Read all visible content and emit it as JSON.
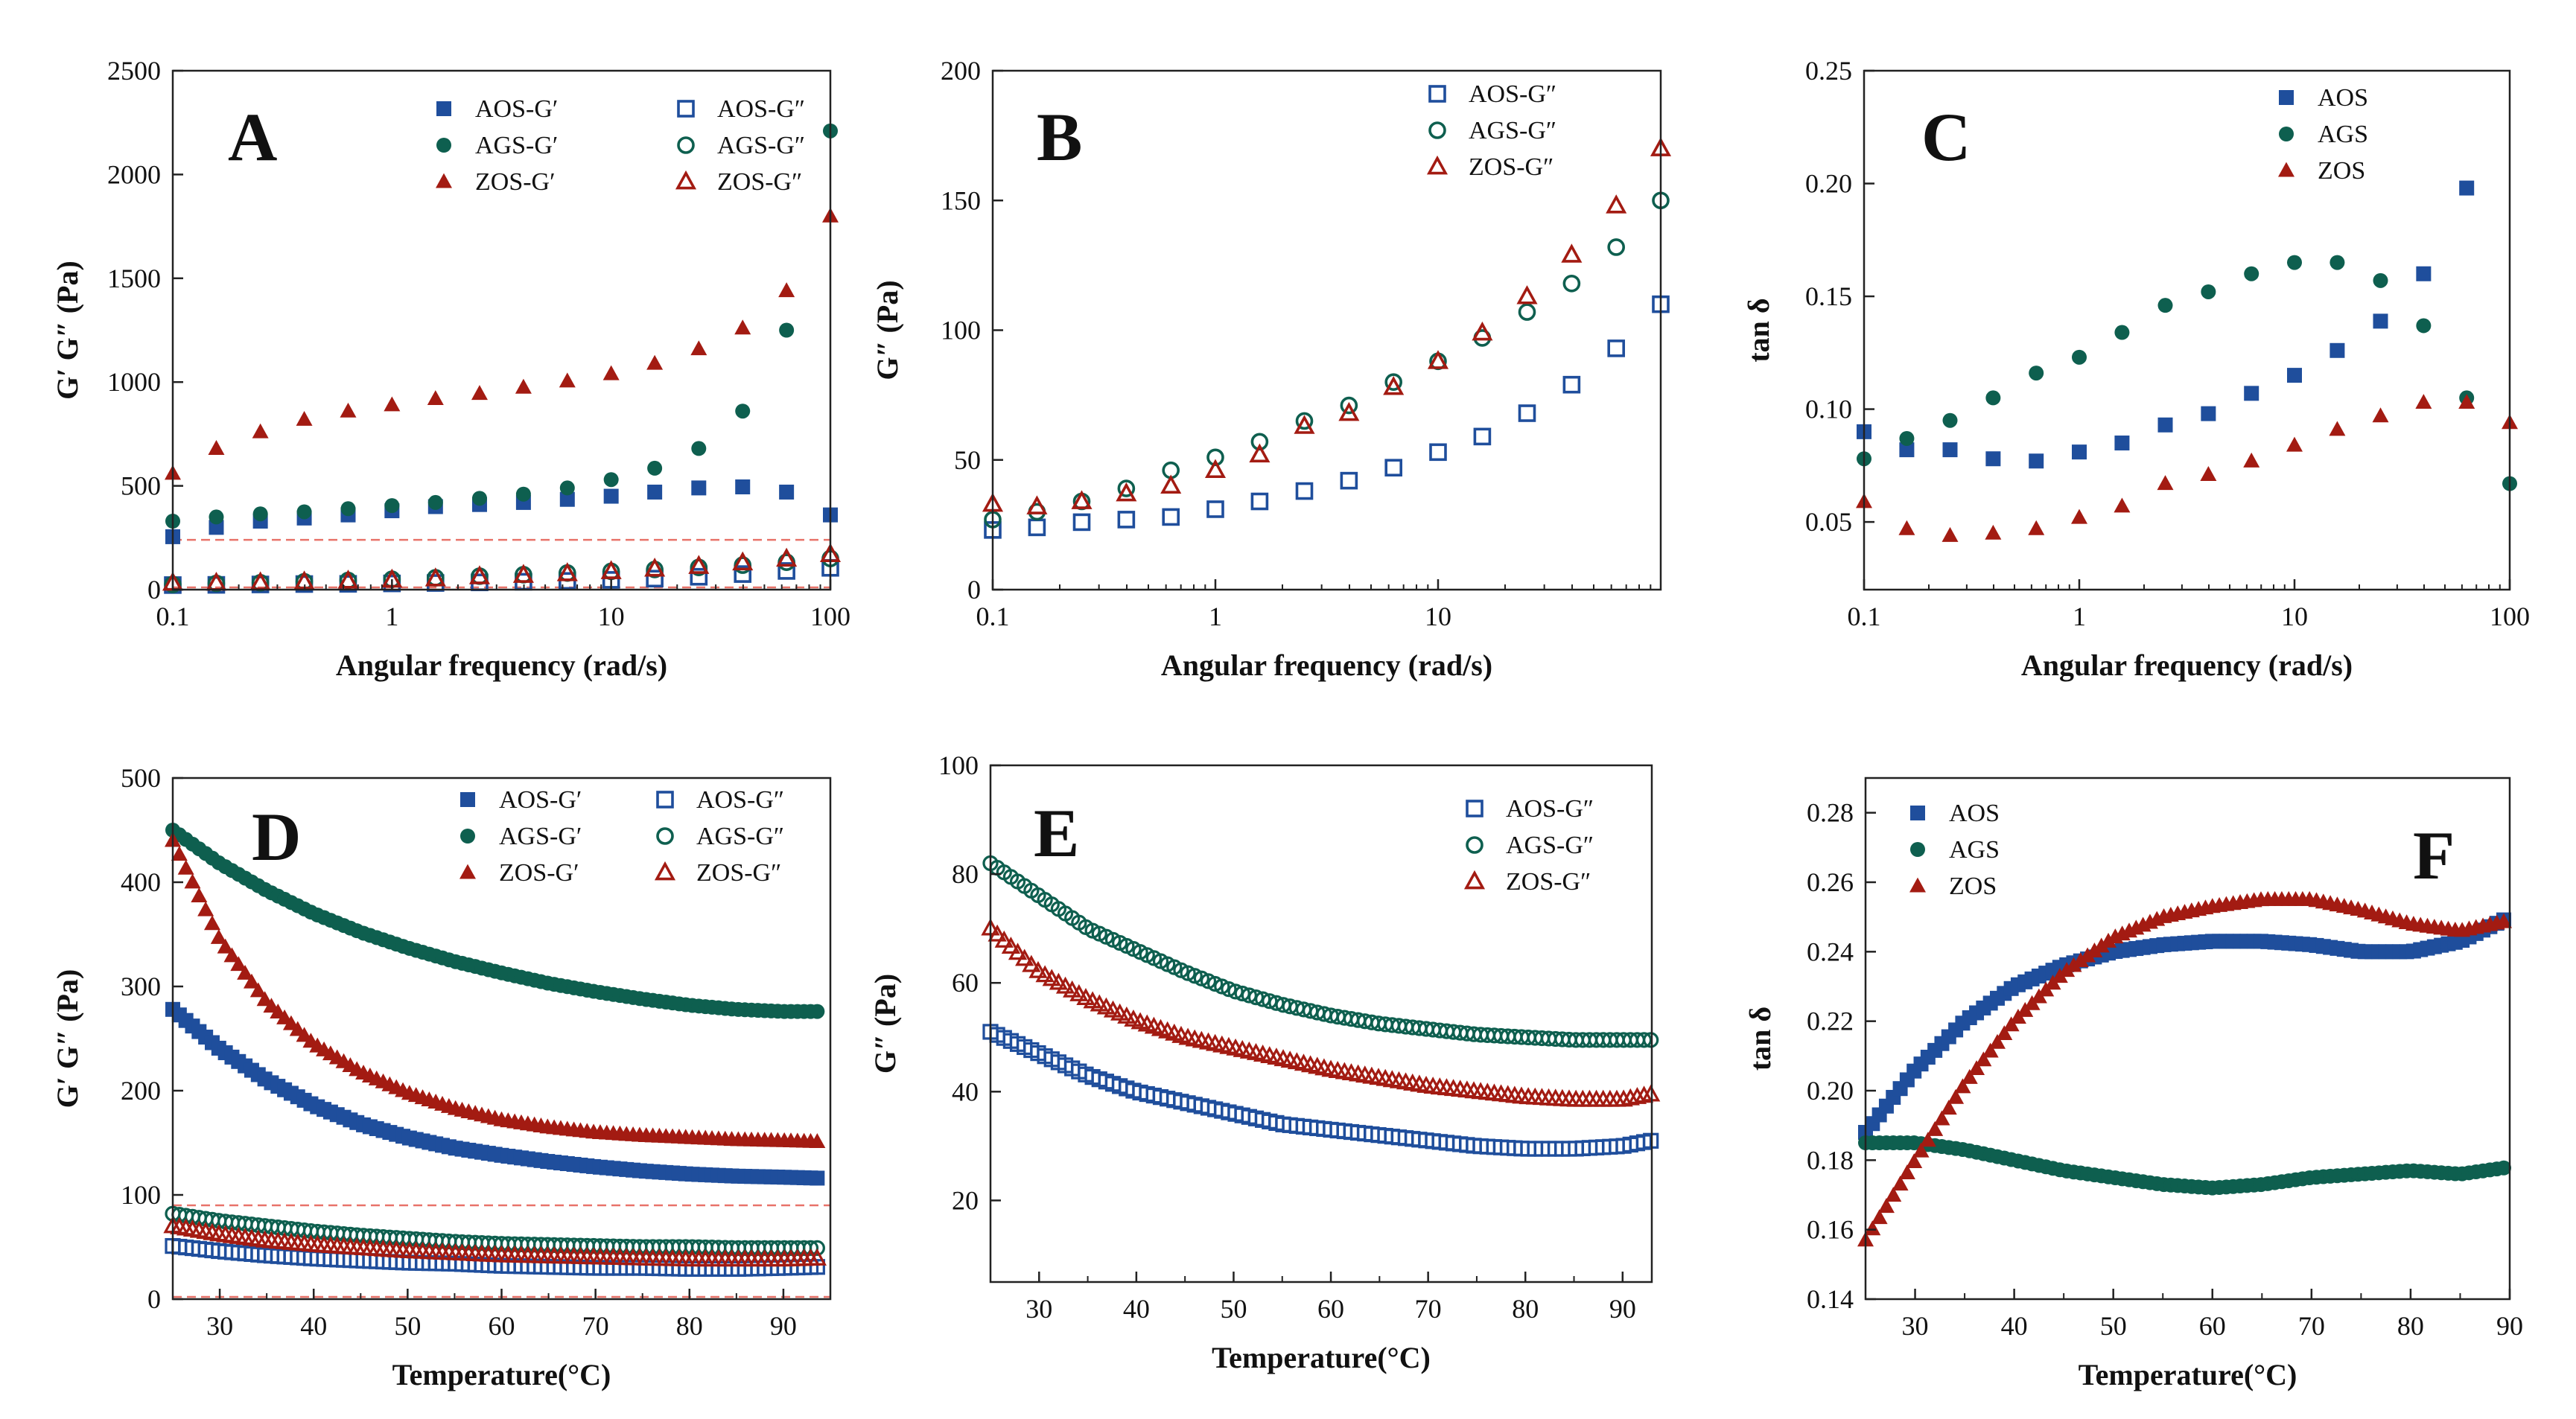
{
  "colors": {
    "AOS": "#1f4e9c",
    "AGS": "#0e5f4f",
    "ZOS": "#a31b12",
    "ref": "#e8736a"
  },
  "chart_data": [
    {
      "id": "A",
      "type": "scatter",
      "xscale": "log",
      "xlabel": "Angular frequency (rad/s)",
      "ylabel": "G′ G″ (Pa)",
      "xlim": [
        0.1,
        100
      ],
      "ylim": [
        0,
        2500
      ],
      "xticks": [
        0.1,
        1,
        10,
        100
      ],
      "xticklabels": [
        "0.1",
        "1",
        "10",
        "100"
      ],
      "yticks": [
        0,
        500,
        1000,
        1500,
        2000,
        2500
      ],
      "yticklabels": [
        "0",
        "500",
        "1000",
        "1500",
        "2000",
        "2500"
      ],
      "hline": 240,
      "legend_cols": 2,
      "x": [
        0.1,
        0.158,
        0.251,
        0.398,
        0.631,
        1,
        1.58,
        2.51,
        3.98,
        6.31,
        10,
        15.8,
        25.1,
        39.8,
        63.1,
        100
      ],
      "series": [
        {
          "name": "AOS-G′",
          "group": "AOS",
          "marker": "square",
          "filled": true,
          "values": [
            255,
            300,
            330,
            345,
            360,
            380,
            400,
            410,
            420,
            435,
            450,
            470,
            490,
            495,
            470,
            360
          ]
        },
        {
          "name": "AOS-G″",
          "group": "AOS",
          "marker": "square",
          "filled": false,
          "values": [
            22,
            23,
            25,
            27,
            28,
            30,
            32,
            35,
            38,
            42,
            47,
            53,
            62,
            75,
            90,
            105
          ]
        },
        {
          "name": "AGS-G′",
          "group": "AGS",
          "marker": "circle",
          "filled": true,
          "values": [
            330,
            350,
            365,
            375,
            390,
            405,
            420,
            440,
            460,
            490,
            530,
            585,
            680,
            860,
            1250,
            2210
          ]
        },
        {
          "name": "AGS-G″",
          "group": "AGS",
          "marker": "circle",
          "filled": false,
          "values": [
            25,
            30,
            33,
            38,
            44,
            50,
            57,
            65,
            72,
            80,
            88,
            97,
            107,
            118,
            132,
            150
          ]
        },
        {
          "name": "ZOS-G′",
          "group": "ZOS",
          "marker": "triangle",
          "filled": true,
          "values": [
            560,
            680,
            760,
            820,
            860,
            890,
            920,
            945,
            975,
            1005,
            1040,
            1090,
            1160,
            1260,
            1440,
            1800
          ]
        },
        {
          "name": "ZOS-G″",
          "group": "ZOS",
          "marker": "triangle",
          "filled": false,
          "values": [
            32,
            32,
            34,
            38,
            42,
            47,
            53,
            63,
            70,
            78,
            88,
            100,
            113,
            130,
            148,
            170
          ]
        }
      ]
    },
    {
      "id": "B",
      "type": "scatter",
      "xscale": "log",
      "xlabel": "Angular frequency (rad/s)",
      "ylabel": "G″ (Pa)",
      "xlim": [
        0.1,
        100
      ],
      "ylim": [
        0,
        200
      ],
      "xticks": [
        0.1,
        1,
        10
      ],
      "xticklabels": [
        "0.1",
        "1",
        "10"
      ],
      "yticks": [
        0,
        50,
        100,
        150,
        200
      ],
      "yticklabels": [
        "0",
        "50",
        "100",
        "150",
        "200"
      ],
      "legend_cols": 1,
      "x": [
        0.1,
        0.158,
        0.251,
        0.398,
        0.631,
        1,
        1.58,
        2.51,
        3.98,
        6.31,
        10,
        15.8,
        25.1,
        39.8,
        63.1,
        100
      ],
      "series": [
        {
          "name": "AOS-G″",
          "group": "AOS",
          "marker": "square",
          "filled": false,
          "values": [
            23,
            24,
            26,
            27,
            28,
            31,
            34,
            38,
            42,
            47,
            53,
            59,
            68,
            79,
            93,
            110
          ]
        },
        {
          "name": "AGS-G″",
          "group": "AGS",
          "marker": "circle",
          "filled": false,
          "values": [
            27,
            30,
            34,
            39,
            46,
            51,
            57,
            65,
            71,
            80,
            88,
            97,
            107,
            118,
            132,
            150
          ]
        },
        {
          "name": "ZOS-G″",
          "group": "ZOS",
          "marker": "triangle",
          "filled": false,
          "values": [
            33,
            32,
            34,
            37,
            40,
            46,
            52,
            63,
            68,
            78,
            88,
            99,
            113,
            129,
            148,
            170
          ]
        }
      ]
    },
    {
      "id": "C",
      "type": "scatter",
      "xscale": "log",
      "xlabel": "Angular frequency (rad/s)",
      "ylabel": "tan δ",
      "xlim": [
        0.1,
        100
      ],
      "ylim": [
        0.02,
        0.25
      ],
      "xticks": [
        0.1,
        1,
        10,
        100
      ],
      "xticklabels": [
        "0.1",
        "1",
        "10",
        "100"
      ],
      "yticks": [
        0.05,
        0.1,
        0.15,
        0.2,
        0.25
      ],
      "yticklabels": [
        "0.05",
        "0.10",
        "0.15",
        "0.20",
        "0.25"
      ],
      "legend_cols": 1,
      "x": [
        0.1,
        0.158,
        0.251,
        0.398,
        0.631,
        1,
        1.58,
        2.51,
        3.98,
        6.31,
        10,
        15.8,
        25.1,
        39.8,
        63.1,
        100
      ],
      "series": [
        {
          "name": "AOS",
          "group": "AOS",
          "marker": "square",
          "filled": true,
          "values": [
            0.09,
            0.082,
            0.082,
            0.078,
            0.077,
            0.081,
            0.085,
            0.093,
            0.098,
            0.107,
            0.115,
            0.126,
            0.139,
            0.16,
            0.198,
            null
          ]
        },
        {
          "name": "AGS",
          "group": "AGS",
          "marker": "circle",
          "filled": true,
          "values": [
            0.078,
            0.087,
            0.095,
            0.105,
            0.116,
            0.123,
            0.134,
            0.146,
            0.152,
            0.16,
            0.165,
            0.165,
            0.157,
            0.137,
            0.105,
            0.067
          ]
        },
        {
          "name": "ZOS",
          "group": "ZOS",
          "marker": "triangle",
          "filled": true,
          "values": [
            0.059,
            0.047,
            0.044,
            0.045,
            0.047,
            0.052,
            0.057,
            0.067,
            0.071,
            0.077,
            0.084,
            0.091,
            0.097,
            0.103,
            0.103,
            0.094
          ]
        }
      ]
    },
    {
      "id": "D",
      "type": "scatter",
      "xscale": "linear",
      "xlabel": "Temperature(°C)",
      "ylabel": "G′ G″ (Pa)",
      "xlim": [
        25,
        95
      ],
      "ylim": [
        0,
        500
      ],
      "xticks": [
        30,
        40,
        50,
        60,
        70,
        80,
        90
      ],
      "xticklabels": [
        "30",
        "40",
        "50",
        "60",
        "70",
        "80",
        "90"
      ],
      "yticks": [
        0,
        100,
        200,
        300,
        400,
        500
      ],
      "yticklabels": [
        "0",
        "100",
        "200",
        "300",
        "400",
        "500"
      ],
      "hline": 90,
      "legend_cols": 2,
      "dense": true,
      "x": [
        25,
        30,
        35,
        40,
        45,
        50,
        55,
        60,
        65,
        70,
        75,
        80,
        85,
        90,
        94
      ],
      "series": [
        {
          "name": "AOS-G′",
          "group": "AOS",
          "marker": "square",
          "filled": true,
          "values": [
            278,
            240,
            210,
            186,
            168,
            155,
            145,
            138,
            132,
            127,
            123,
            120,
            118,
            117,
            116
          ]
        },
        {
          "name": "AOS-G″",
          "group": "AOS",
          "marker": "square",
          "filled": false,
          "values": [
            51,
            46,
            42,
            39,
            37,
            35,
            34,
            32,
            31,
            30,
            30,
            29,
            29,
            30,
            31
          ]
        },
        {
          "name": "AGS-G′",
          "group": "AGS",
          "marker": "circle",
          "filled": true,
          "values": [
            450,
            418,
            392,
            370,
            352,
            337,
            324,
            313,
            303,
            295,
            288,
            282,
            278,
            276,
            276
          ]
        },
        {
          "name": "AGS-G″",
          "group": "AGS",
          "marker": "circle",
          "filled": false,
          "values": [
            82,
            75,
            70,
            65,
            61,
            58,
            55,
            53,
            52,
            51,
            50,
            50,
            49,
            49,
            49
          ]
        },
        {
          "name": "ZOS-G′",
          "group": "ZOS",
          "marker": "triangle",
          "filled": true,
          "values": [
            440,
            345,
            285,
            245,
            218,
            198,
            183,
            172,
            165,
            160,
            157,
            155,
            153,
            152,
            151
          ]
        },
        {
          "name": "ZOS-G″",
          "group": "ZOS",
          "marker": "triangle",
          "filled": false,
          "values": [
            70,
            62,
            56,
            52,
            49,
            46,
            44,
            42,
            41,
            40,
            39,
            38,
            38,
            38,
            39
          ]
        }
      ]
    },
    {
      "id": "E",
      "type": "scatter",
      "xscale": "linear",
      "xlabel": "Temperature(°C)",
      "ylabel": "G″ (Pa)",
      "xlim": [
        25,
        93
      ],
      "ylim": [
        5,
        100
      ],
      "xticks": [
        30,
        40,
        50,
        60,
        70,
        80,
        90
      ],
      "xticklabels": [
        "30",
        "40",
        "50",
        "60",
        "70",
        "80",
        "90"
      ],
      "yticks": [
        20,
        40,
        60,
        80,
        100
      ],
      "yticklabels": [
        "20",
        "40",
        "60",
        "80",
        "100"
      ],
      "legend_cols": 1,
      "dense": true,
      "x": [
        25,
        30,
        35,
        40,
        45,
        50,
        55,
        60,
        65,
        70,
        75,
        80,
        85,
        90,
        93
      ],
      "series": [
        {
          "name": "AOS-G″",
          "group": "AOS",
          "marker": "square",
          "filled": false,
          "values": [
            51,
            47,
            43,
            40,
            38,
            36,
            34,
            33,
            32,
            31,
            30,
            29.5,
            29.5,
            30,
            31
          ]
        },
        {
          "name": "AGS-G″",
          "group": "AGS",
          "marker": "circle",
          "filled": false,
          "values": [
            82,
            76,
            70,
            66,
            62,
            58.5,
            56,
            54,
            52.5,
            51.5,
            50.5,
            50,
            49.5,
            49.5,
            49.5
          ]
        },
        {
          "name": "ZOS-G″",
          "group": "ZOS",
          "marker": "triangle",
          "filled": false,
          "values": [
            70,
            62,
            57,
            53,
            50,
            48,
            46,
            44,
            42.5,
            41,
            40,
            39,
            38.5,
            38.5,
            39.5
          ]
        }
      ]
    },
    {
      "id": "F",
      "type": "scatter",
      "xscale": "linear",
      "xlabel": "Temperature(°C)",
      "ylabel": "tan δ",
      "xlim": [
        25,
        90
      ],
      "ylim": [
        0.14,
        0.29
      ],
      "xticks": [
        30,
        40,
        50,
        60,
        70,
        80,
        90
      ],
      "xticklabels": [
        "30",
        "40",
        "50",
        "60",
        "70",
        "80",
        "90"
      ],
      "yticks": [
        0.14,
        0.16,
        0.18,
        0.2,
        0.22,
        0.24,
        0.26,
        0.28
      ],
      "yticklabels": [
        "0.14",
        "0.16",
        "0.18",
        "0.20",
        "0.22",
        "0.24",
        "0.26",
        "0.28"
      ],
      "legend_cols": 1,
      "dense": true,
      "x": [
        25,
        30,
        35,
        40,
        45,
        50,
        55,
        60,
        65,
        70,
        75,
        80,
        85,
        90
      ],
      "series": [
        {
          "name": "AOS",
          "group": "AOS",
          "marker": "square",
          "filled": true,
          "values": [
            0.188,
            0.206,
            0.22,
            0.23,
            0.236,
            0.24,
            0.242,
            0.243,
            0.243,
            0.242,
            0.24,
            0.24,
            0.243,
            0.25
          ]
        },
        {
          "name": "AGS",
          "group": "AGS",
          "marker": "circle",
          "filled": true,
          "values": [
            0.185,
            0.185,
            0.183,
            0.18,
            0.177,
            0.175,
            0.173,
            0.172,
            0.173,
            0.175,
            0.176,
            0.177,
            0.176,
            0.178
          ]
        },
        {
          "name": "ZOS",
          "group": "ZOS",
          "marker": "triangle",
          "filled": true,
          "values": [
            0.157,
            0.18,
            0.202,
            0.22,
            0.234,
            0.244,
            0.25,
            0.253,
            0.255,
            0.255,
            0.252,
            0.248,
            0.246,
            0.249
          ]
        }
      ]
    }
  ]
}
